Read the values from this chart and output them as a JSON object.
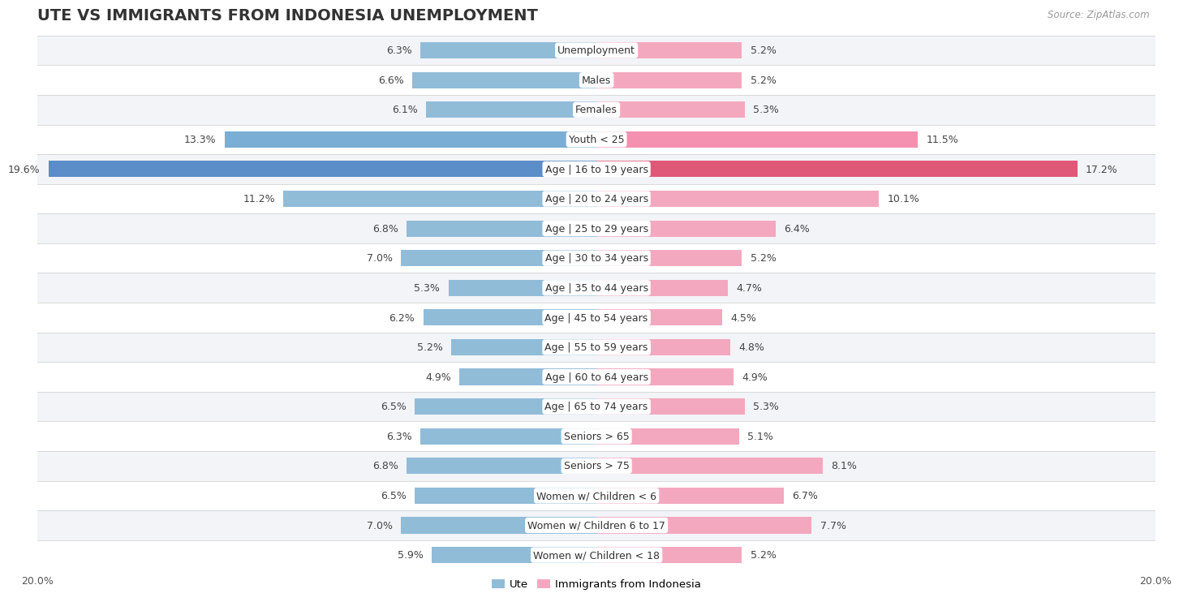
{
  "title": "UTE VS IMMIGRANTS FROM INDONESIA UNEMPLOYMENT",
  "source": "Source: ZipAtlas.com",
  "categories": [
    "Unemployment",
    "Males",
    "Females",
    "Youth < 25",
    "Age | 16 to 19 years",
    "Age | 20 to 24 years",
    "Age | 25 to 29 years",
    "Age | 30 to 34 years",
    "Age | 35 to 44 years",
    "Age | 45 to 54 years",
    "Age | 55 to 59 years",
    "Age | 60 to 64 years",
    "Age | 65 to 74 years",
    "Seniors > 65",
    "Seniors > 75",
    "Women w/ Children < 6",
    "Women w/ Children 6 to 17",
    "Women w/ Children < 18"
  ],
  "ute_values": [
    6.3,
    6.6,
    6.1,
    13.3,
    19.6,
    11.2,
    6.8,
    7.0,
    5.3,
    6.2,
    5.2,
    4.9,
    6.5,
    6.3,
    6.8,
    6.5,
    7.0,
    5.9
  ],
  "indonesia_values": [
    5.2,
    5.2,
    5.3,
    11.5,
    17.2,
    10.1,
    6.4,
    5.2,
    4.7,
    4.5,
    4.8,
    4.9,
    5.3,
    5.1,
    8.1,
    6.7,
    7.7,
    5.2
  ],
  "ute_color": "#90bcd8",
  "indonesia_color": "#f4a8bf",
  "ute_color_youth": "#7aaed4",
  "indonesia_color_youth": "#f490b0",
  "ute_color_age16": "#5b8dc8",
  "indonesia_color_age16": "#e05878",
  "x_max": 20.0,
  "bg_colors": [
    "#f2f4f7",
    "#ffffff"
  ],
  "label_bg": "#ffffff",
  "legend_ute": "Ute",
  "legend_indonesia": "Immigrants from Indonesia",
  "title_fontsize": 14,
  "label_fontsize": 9,
  "value_fontsize": 9
}
